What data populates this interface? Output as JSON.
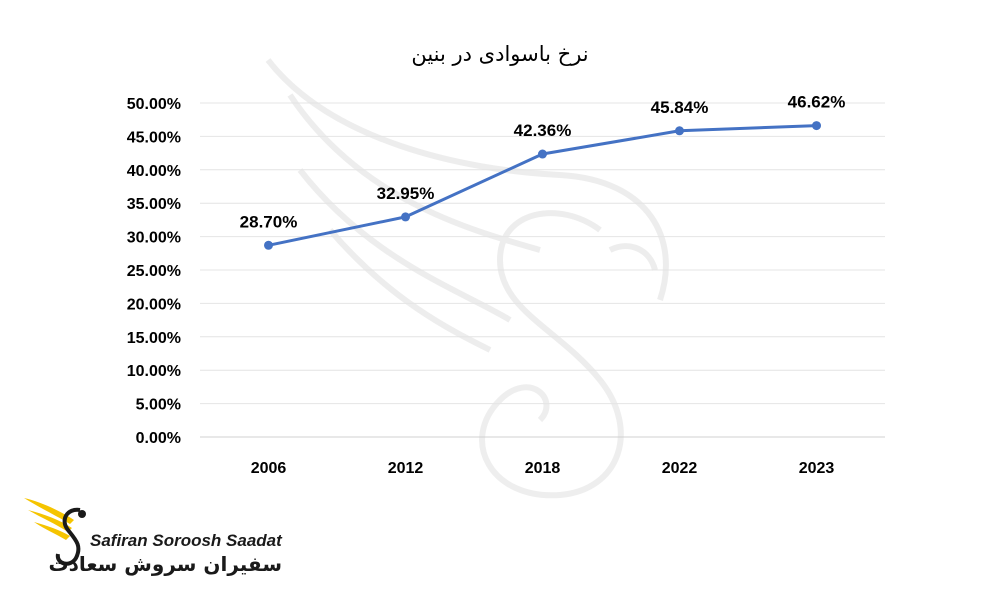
{
  "chart_data": {
    "type": "line",
    "title": "نرخ باسوادی در بنین",
    "categories": [
      "2006",
      "2012",
      "2018",
      "2022",
      "2023"
    ],
    "values": [
      28.7,
      32.95,
      42.36,
      45.84,
      46.62
    ],
    "data_labels": [
      "28.70%",
      "32.95%",
      "42.36%",
      "45.84%",
      "46.62%"
    ],
    "ylim": [
      0,
      50
    ],
    "yticks": [
      "0.00%",
      "5.00%",
      "10.00%",
      "15.00%",
      "20.00%",
      "25.00%",
      "30.00%",
      "35.00%",
      "40.00%",
      "45.00%",
      "50.00%"
    ],
    "grid": true,
    "line_color": "#4472c4"
  },
  "watermark": {
    "brand_en": "Safiran Soroosh Saadat",
    "brand_fa": "سفیران سروش سعادت",
    "logo_color": "#f5c400"
  }
}
